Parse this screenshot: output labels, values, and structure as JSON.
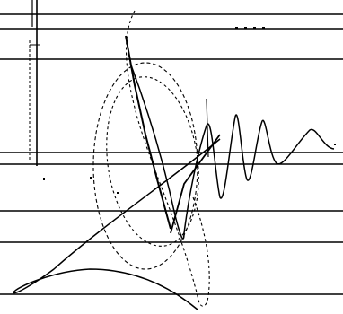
{
  "canvas": {
    "background": "#ffffff",
    "ink": "#000000"
  }
}
